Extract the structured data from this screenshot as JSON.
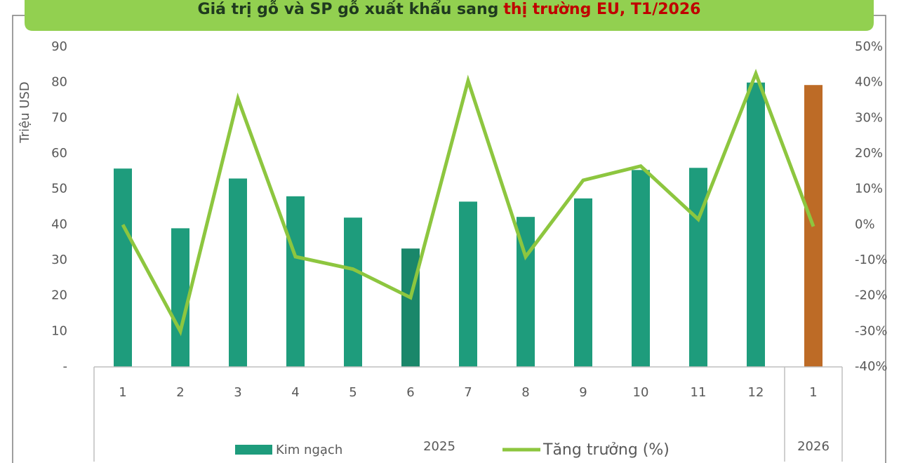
{
  "chart_data": {
    "type": "bar",
    "title_main": "Giá trị gỗ và SP gỗ xuất khẩu sang",
    "title_highlight": "thị trường EU, T1/2026",
    "ylabel": "Triệu USD",
    "categories": [
      "1",
      "2",
      "3",
      "4",
      "5",
      "6",
      "7",
      "8",
      "9",
      "10",
      "11",
      "12",
      "1"
    ],
    "x_groups": [
      {
        "label": "2025",
        "count": 12
      },
      {
        "label": "2026",
        "count": 1
      }
    ],
    "series": [
      {
        "name": "Kim ngạch",
        "type": "bar",
        "color": "#1e9c7c",
        "colors": [
          "#1e9c7c",
          "#1e9c7c",
          "#1e9c7c",
          "#1e9c7c",
          "#1e9c7c",
          "#1a876a",
          "#1e9c7c",
          "#1e9c7c",
          "#1e9c7c",
          "#1e9c7c",
          "#1e9c7c",
          "#1e9c7c",
          "#bd6b26"
        ],
        "values": [
          55.8,
          39,
          53,
          48,
          42,
          33.3,
          46.5,
          42.2,
          47.4,
          55.4,
          56,
          80,
          79.3
        ]
      },
      {
        "name": "Tăng trưởng (%)",
        "type": "line",
        "axis": "y2",
        "color": "#8dc63f",
        "values": [
          0,
          -30,
          35.5,
          -9,
          -12.5,
          -20.5,
          40.5,
          -9,
          12.5,
          16.5,
          1.5,
          42.5,
          -0.5
        ]
      }
    ],
    "ylim": [
      0,
      90
    ],
    "yticks": [
      {
        "value": 0,
        "label": "-"
      },
      10,
      20,
      30,
      40,
      50,
      60,
      70,
      80,
      90
    ],
    "y2lim": [
      -40,
      50
    ],
    "y2ticks": [
      {
        "value": -40,
        "label": "-40%"
      },
      {
        "value": -30,
        "label": "-30%"
      },
      {
        "value": -20,
        "label": "-20%"
      },
      {
        "value": -10,
        "label": "-10%"
      },
      {
        "value": 0,
        "label": "0%"
      },
      {
        "value": 10,
        "label": "10%"
      },
      {
        "value": 20,
        "label": "20%"
      },
      {
        "value": 30,
        "label": "30%"
      },
      {
        "value": 40,
        "label": "40%"
      },
      {
        "value": 50,
        "label": "50%"
      }
    ],
    "grid": false,
    "legend": "bottom"
  }
}
